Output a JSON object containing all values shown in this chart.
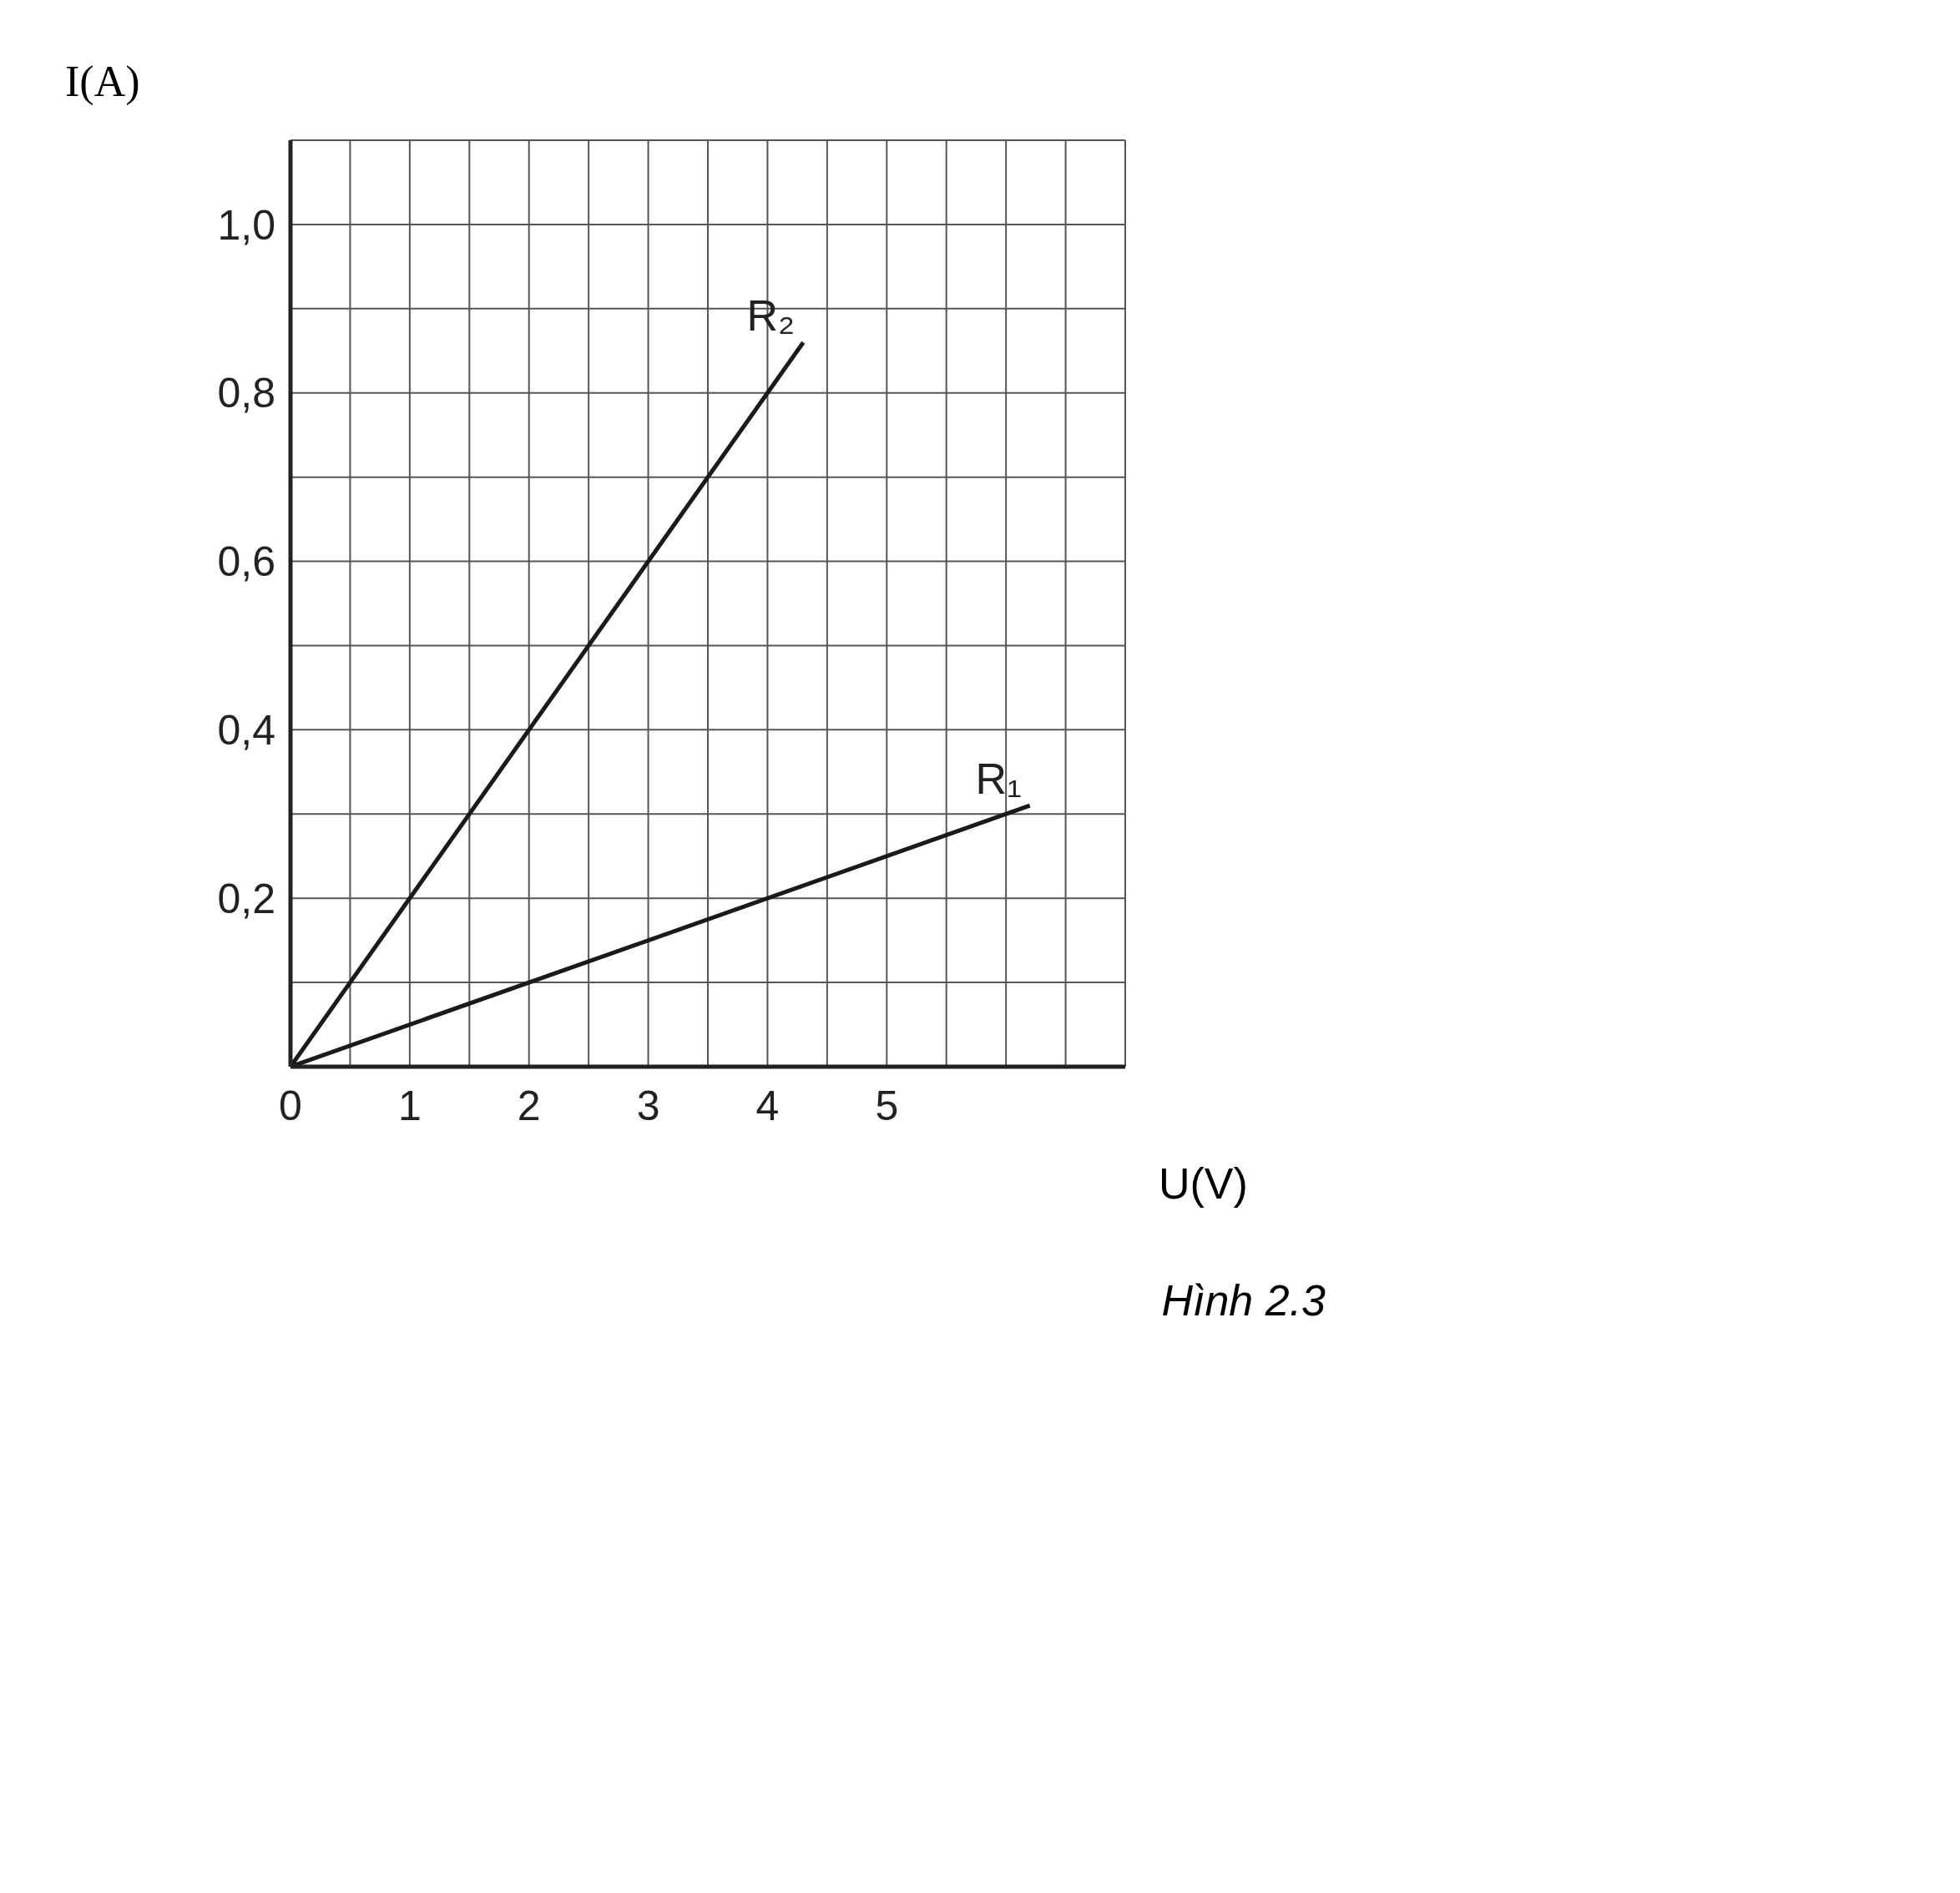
{
  "chart_data": {
    "type": "line",
    "xlabel": "U(V)",
    "ylabel": "I(A)",
    "annotations": [
      "Hình 2.3"
    ],
    "xlim": [
      0,
      7
    ],
    "ylim": [
      0,
      1.1
    ],
    "xticks": [
      0,
      {
        "value": 0.5,
        "label": null
      },
      1,
      {
        "value": 1.5,
        "label": null
      },
      2,
      {
        "value": 2.5,
        "label": null
      },
      3,
      {
        "value": 3.5,
        "label": null
      },
      4,
      {
        "value": 4.5,
        "label": null
      },
      5,
      {
        "value": 5.5,
        "label": null
      },
      {
        "value": 6,
        "label": null
      },
      {
        "value": 6.5,
        "label": null
      },
      {
        "value": 7,
        "label": null
      }
    ],
    "yticks": [
      {
        "value": 0,
        "label": null
      },
      {
        "value": 0.1,
        "label": null
      },
      {
        "value": 0.2,
        "label": "0,2"
      },
      {
        "value": 0.3,
        "label": null
      },
      {
        "value": 0.4,
        "label": "0,4"
      },
      {
        "value": 0.5,
        "label": null
      },
      {
        "value": 0.6,
        "label": "0,6"
      },
      {
        "value": 0.7,
        "label": null
      },
      {
        "value": 0.8,
        "label": "0,8"
      },
      {
        "value": 0.9,
        "label": null
      },
      {
        "value": 1.0,
        "label": "1,0"
      },
      {
        "value": 1.1,
        "label": null
      }
    ],
    "grid": true,
    "marker": "none",
    "line_style": "solid",
    "series": [
      {
        "name": "R₂",
        "color": "#1a1a1a",
        "x": [
          0,
          4.3
        ],
        "values": [
          0,
          0.86
        ]
      },
      {
        "name": "R₁",
        "color": "#1a1a1a",
        "x": [
          0,
          6.2
        ],
        "values": [
          0,
          0.31
        ]
      }
    ]
  }
}
